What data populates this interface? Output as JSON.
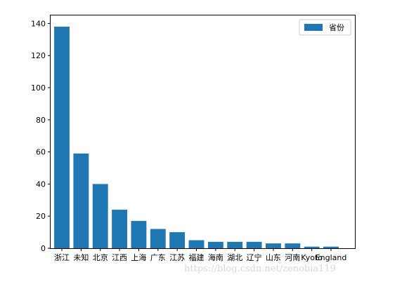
{
  "chart_data": {
    "type": "bar",
    "categories": [
      "浙江",
      "未知",
      "北京",
      "江西",
      "上海",
      "广东",
      "江苏",
      "福建",
      "海南",
      "湖北",
      "辽宁",
      "山东",
      "河南",
      "Kyoto",
      "England"
    ],
    "series": [
      {
        "name": "省份",
        "values": [
          138,
          59,
          40,
          24,
          17,
          12,
          10,
          5,
          4,
          4,
          4,
          3,
          3,
          1,
          1
        ],
        "color": "#1f77b4"
      }
    ],
    "ylim": [
      0,
      145
    ],
    "yticks": [
      0,
      20,
      40,
      60,
      80,
      100,
      120,
      140
    ],
    "legend_position": "top-right",
    "grid": false
  },
  "watermark": "https://blog.csdn.net/zenobia119"
}
